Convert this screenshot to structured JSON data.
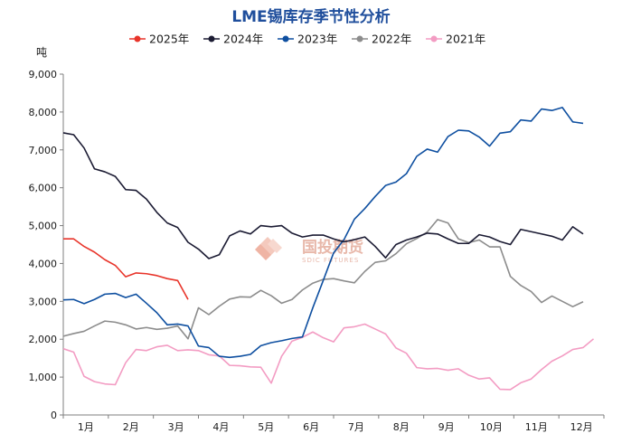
{
  "chart_data": {
    "type": "line",
    "title": "LME锡库存季节性分析",
    "ylabel": "吨",
    "ylim": [
      0,
      9000
    ],
    "yticks": [
      "0",
      "1,000",
      "2,000",
      "3,000",
      "4,000",
      "5,000",
      "6,000",
      "7,000",
      "8,000",
      "9,000"
    ],
    "ytick_values": [
      0,
      1000,
      2000,
      3000,
      4000,
      5000,
      6000,
      7000,
      8000,
      9000
    ],
    "xticks": [
      "1月",
      "2月",
      "3月",
      "4月",
      "5月",
      "6月",
      "7月",
      "8月",
      "9月",
      "10月",
      "11月",
      "12月"
    ],
    "xlim": [
      0,
      52
    ],
    "grid": false,
    "legend_position": "top",
    "series": [
      {
        "name": "2025年",
        "color": "#e8342a",
        "values": [
          4650,
          4650,
          4450,
          4300,
          4100,
          3950,
          3650,
          3750,
          3730,
          3680,
          3600,
          3550,
          3050
        ]
      },
      {
        "name": "2024年",
        "color": "#1b1b33",
        "values": [
          7450,
          7400,
          7050,
          6500,
          6420,
          6300,
          5950,
          5930,
          5700,
          5350,
          5070,
          4950,
          4560,
          4380,
          4130,
          4230,
          4730,
          4860,
          4780,
          5000,
          4970,
          5000,
          4800,
          4700,
          4750,
          4750,
          4650,
          4570,
          4630,
          4700,
          4450,
          4150,
          4500,
          4620,
          4700,
          4800,
          4780,
          4650,
          4530,
          4530,
          4760,
          4700,
          4580,
          4500,
          4900,
          4840,
          4780,
          4720,
          4620,
          4970,
          4780
        ]
      },
      {
        "name": "2023年",
        "color": "#0e4fa0",
        "values": [
          3040,
          3050,
          2940,
          3050,
          3190,
          3210,
          3100,
          3190,
          2950,
          2700,
          2380,
          2400,
          2350,
          1820,
          1780,
          1550,
          1520,
          1550,
          1600,
          1830,
          1910,
          1960,
          2020,
          2060,
          2830,
          3550,
          4280,
          4630,
          5170,
          5450,
          5770,
          6060,
          6150,
          6370,
          6830,
          7020,
          6940,
          7350,
          7520,
          7500,
          7340,
          7100,
          7440,
          7480,
          7790,
          7760,
          8080,
          8040,
          8120,
          7740,
          7700
        ]
      },
      {
        "name": "2022年",
        "color": "#8c8c8c",
        "values": [
          2080,
          2150,
          2210,
          2350,
          2480,
          2450,
          2380,
          2270,
          2310,
          2260,
          2290,
          2350,
          2010,
          2830,
          2650,
          2870,
          3060,
          3120,
          3110,
          3290,
          3150,
          2950,
          3050,
          3300,
          3480,
          3580,
          3600,
          3540,
          3490,
          3790,
          4030,
          4070,
          4260,
          4520,
          4660,
          4830,
          5160,
          5070,
          4650,
          4550,
          4620,
          4440,
          4440,
          3660,
          3420,
          3260,
          2970,
          3140,
          3000,
          2860,
          2990
        ]
      },
      {
        "name": "2021年",
        "color": "#f39cc3",
        "values": [
          1750,
          1660,
          1020,
          880,
          820,
          800,
          1380,
          1730,
          1700,
          1800,
          1840,
          1700,
          1720,
          1700,
          1590,
          1560,
          1310,
          1300,
          1270,
          1260,
          840,
          1550,
          1950,
          2050,
          2190,
          2040,
          1930,
          2300,
          2330,
          2400,
          2270,
          2140,
          1770,
          1630,
          1250,
          1220,
          1230,
          1180,
          1220,
          1050,
          950,
          980,
          680,
          670,
          850,
          950,
          1200,
          1420,
          1560,
          1730,
          1780,
          2010
        ]
      }
    ]
  },
  "watermark": {
    "brand_cn": "国投期货",
    "brand_en": "SDIC FUTURES"
  }
}
